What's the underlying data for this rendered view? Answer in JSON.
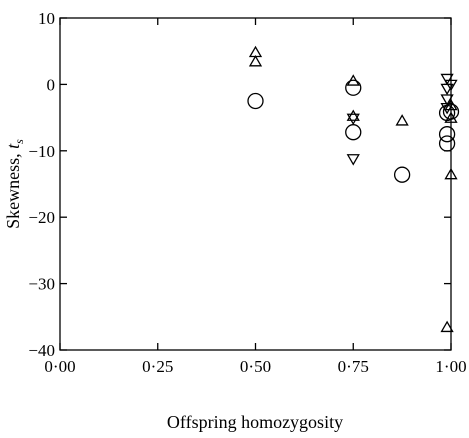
{
  "chart_data": {
    "type": "scatter",
    "xlabel": "Offspring homozygosity",
    "ylabel": "Skewness, ",
    "ylabel_symbol": "t",
    "ylabel_subscript": "s",
    "xlim": [
      0.0,
      1.0
    ],
    "ylim": [
      -40,
      10
    ],
    "xticks": [
      0.0,
      0.25,
      0.5,
      0.75,
      1.0
    ],
    "xtick_labels": [
      "0·00",
      "0·25",
      "0·50",
      "0·75",
      "1·00"
    ],
    "yticks": [
      10,
      0,
      -10,
      -20,
      -30,
      -40
    ],
    "ytick_labels": [
      "10",
      "0",
      "−10",
      "−20",
      "−30",
      "−40"
    ],
    "grid": false,
    "series": [
      {
        "marker": "circle",
        "points": [
          {
            "x": 0.5,
            "y": -2.5
          },
          {
            "x": 0.75,
            "y": -0.5
          },
          {
            "x": 0.75,
            "y": -7.2
          },
          {
            "x": 0.875,
            "y": -13.6
          },
          {
            "x": 0.99,
            "y": -4.3
          },
          {
            "x": 0.99,
            "y": -7.5
          },
          {
            "x": 0.99,
            "y": -8.9
          },
          {
            "x": 1.0,
            "y": -4.1
          }
        ]
      },
      {
        "marker": "triangle-up",
        "points": [
          {
            "x": 0.5,
            "y": 4.8
          },
          {
            "x": 0.5,
            "y": 3.4
          },
          {
            "x": 0.75,
            "y": 0.5
          },
          {
            "x": 0.75,
            "y": -4.8
          },
          {
            "x": 0.875,
            "y": -5.5
          },
          {
            "x": 0.99,
            "y": -36.6
          },
          {
            "x": 1.0,
            "y": -13.6
          },
          {
            "x": 1.0,
            "y": -5.1
          },
          {
            "x": 1.0,
            "y": -3.2
          }
        ]
      },
      {
        "marker": "triangle-down",
        "points": [
          {
            "x": 0.75,
            "y": -5.1
          },
          {
            "x": 0.75,
            "y": -11.2
          },
          {
            "x": 0.99,
            "y": 0.9
          },
          {
            "x": 0.99,
            "y": -0.6
          },
          {
            "x": 0.99,
            "y": -2.2
          },
          {
            "x": 0.99,
            "y": -3.5
          },
          {
            "x": 1.0,
            "y": 0.0
          }
        ]
      }
    ]
  }
}
